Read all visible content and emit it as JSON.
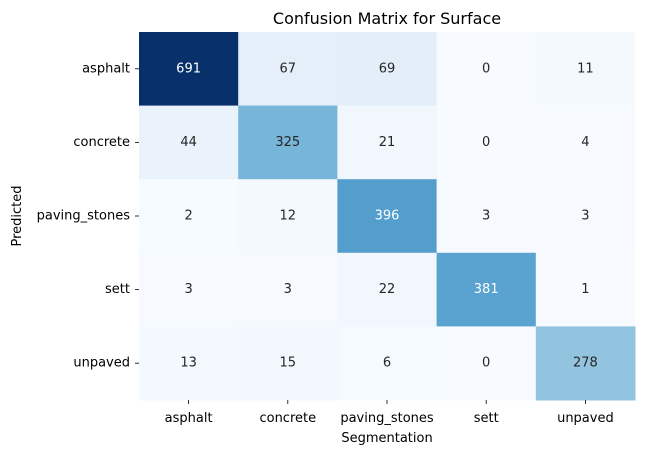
{
  "chart_data": {
    "type": "heatmap",
    "title": "Confusion Matrix for Surface",
    "xlabel": "Segmentation",
    "ylabel": "Predicted",
    "x_categories": [
      "asphalt",
      "concrete",
      "paving_stones",
      "sett",
      "unpaved"
    ],
    "y_categories": [
      "asphalt",
      "concrete",
      "paving_stones",
      "sett",
      "unpaved"
    ],
    "values": [
      [
        691,
        67,
        69,
        0,
        11
      ],
      [
        44,
        325,
        21,
        0,
        4
      ],
      [
        2,
        12,
        396,
        3,
        3
      ],
      [
        3,
        3,
        22,
        381,
        1
      ],
      [
        13,
        15,
        6,
        0,
        278
      ]
    ],
    "colormap": "Blues",
    "colors": {
      "min": "#f7fbff",
      "max": "#08306b",
      "text_dark": "#262626",
      "text_light": "#ffffff"
    },
    "colorbar": false,
    "grid": false
  }
}
